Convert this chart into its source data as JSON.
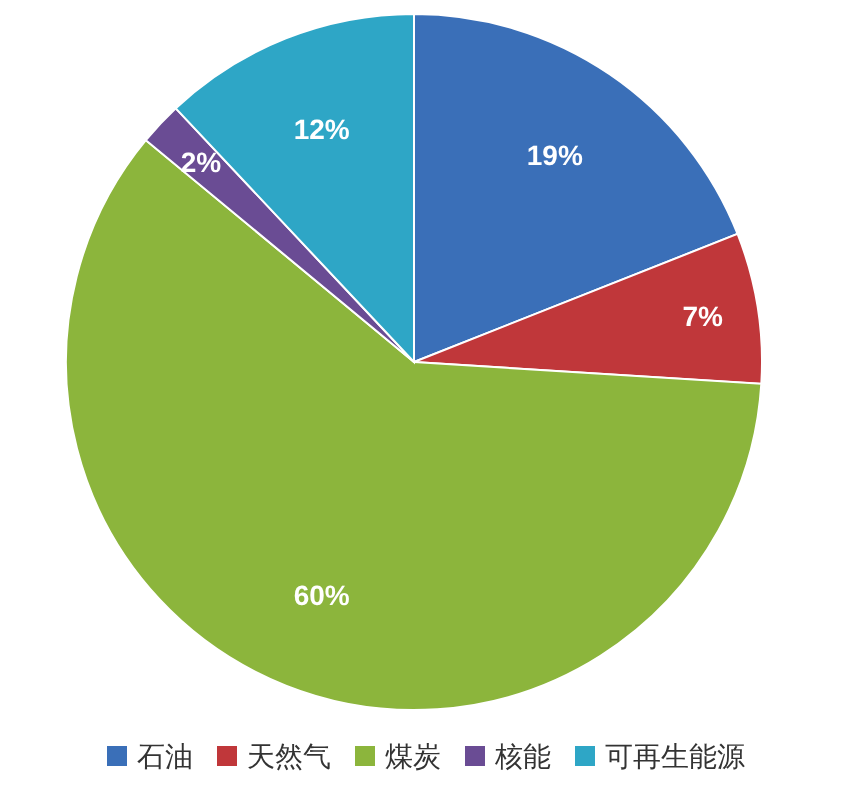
{
  "chart_data": {
    "type": "pie",
    "categories": [
      "石油",
      "天然气",
      "煤炭",
      "核能",
      "可再生能源"
    ],
    "values": [
      19,
      7,
      60,
      2,
      12
    ],
    "value_labels": [
      "19%",
      "7%",
      "60%",
      "2%",
      "12%"
    ],
    "colors": [
      "#3a6fb8",
      "#c0373a",
      "#8cb53c",
      "#6a4c94",
      "#2ea6c6"
    ],
    "legend": "bottom"
  }
}
